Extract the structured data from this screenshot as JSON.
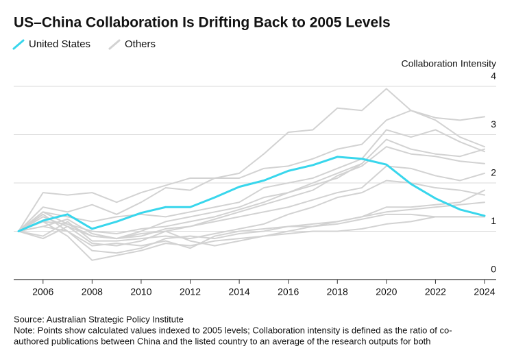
{
  "chart_data": {
    "type": "line",
    "title": "US–China Collaboration Is Drifting Back to 2005 Levels",
    "y_label": "Collaboration Intensity",
    "x": [
      2005,
      2006,
      2007,
      2008,
      2009,
      2010,
      2011,
      2012,
      2013,
      2014,
      2015,
      2016,
      2017,
      2018,
      2019,
      2020,
      2021,
      2022,
      2023,
      2024
    ],
    "xlim": [
      2005,
      2024
    ],
    "xticks": [
      2006,
      2008,
      2010,
      2012,
      2014,
      2016,
      2018,
      2020,
      2022,
      2024
    ],
    "ylim": [
      0,
      4
    ],
    "yticks": [
      0,
      1,
      2,
      3,
      4
    ],
    "grid": true,
    "series": [
      {
        "name": "United States",
        "color": "#38d6ec",
        "values": [
          1.0,
          1.22,
          1.35,
          1.05,
          1.2,
          1.38,
          1.5,
          1.5,
          1.7,
          1.92,
          2.05,
          2.25,
          2.37,
          2.54,
          2.5,
          2.38,
          1.98,
          1.68,
          1.45,
          1.32
        ]
      },
      {
        "name": "Others",
        "color": "#d2d2d2",
        "values": [
          [
            1.0,
            1.5,
            1.4,
            1.55,
            1.35,
            1.6,
            1.9,
            1.85,
            2.1,
            2.2,
            2.6,
            3.05,
            3.1,
            3.55,
            3.5,
            3.95,
            3.5,
            3.3,
            2.95,
            2.75
          ],
          [
            1.0,
            1.8,
            1.75,
            1.8,
            1.6,
            1.8,
            1.95,
            2.1,
            2.1,
            2.1,
            2.3,
            2.35,
            2.5,
            2.7,
            2.8,
            3.3,
            3.5,
            3.35,
            3.3,
            3.37
          ],
          [
            1.0,
            1.4,
            1.3,
            1.2,
            1.3,
            1.35,
            1.3,
            1.4,
            1.5,
            1.6,
            1.9,
            2.0,
            2.1,
            2.3,
            2.5,
            3.1,
            2.95,
            3.1,
            2.85,
            2.65
          ],
          [
            1.0,
            1.3,
            1.1,
            0.9,
            0.85,
            1.0,
            1.2,
            1.3,
            1.4,
            1.5,
            1.7,
            1.8,
            2.0,
            2.2,
            2.4,
            2.9,
            2.7,
            2.6,
            2.55,
            2.7
          ],
          [
            1.0,
            1.2,
            1.15,
            0.9,
            0.85,
            0.9,
            1.05,
            1.1,
            1.25,
            1.4,
            1.55,
            1.7,
            1.85,
            2.15,
            2.35,
            2.75,
            2.6,
            2.55,
            2.45,
            2.4
          ],
          [
            1.0,
            1.1,
            1.25,
            0.95,
            0.85,
            0.95,
            1.0,
            1.1,
            1.2,
            1.3,
            1.4,
            1.5,
            1.65,
            1.8,
            1.9,
            2.35,
            2.3,
            2.15,
            2.05,
            2.2
          ],
          [
            1.0,
            0.9,
            1.2,
            0.8,
            0.8,
            0.85,
            0.9,
            0.85,
            0.95,
            1.05,
            1.15,
            1.35,
            1.5,
            1.7,
            1.8,
            2.05,
            2.0,
            1.9,
            1.85,
            1.75
          ],
          [
            1.0,
            1.35,
            1.0,
            0.6,
            0.55,
            0.65,
            0.85,
            0.9,
            0.85,
            0.95,
            1.0,
            1.1,
            1.15,
            1.2,
            1.3,
            1.5,
            1.5,
            1.55,
            1.6,
            1.85
          ],
          [
            1.0,
            1.2,
            0.9,
            0.4,
            0.5,
            0.6,
            0.75,
            0.7,
            0.8,
            0.85,
            0.9,
            0.95,
            1.0,
            1.0,
            1.05,
            1.15,
            1.2,
            1.3,
            1.3,
            1.3
          ],
          [
            1.0,
            0.85,
            1.1,
            0.75,
            0.7,
            0.8,
            1.0,
            0.8,
            0.7,
            0.8,
            0.9,
            1.0,
            1.1,
            1.2,
            1.3,
            1.4,
            1.45,
            1.5,
            1.55,
            1.6
          ],
          [
            1.0,
            1.4,
            1.15,
            1.0,
            0.95,
            1.05,
            1.1,
            1.2,
            1.3,
            1.45,
            1.6,
            1.8,
            1.95,
            2.1,
            2.4,
            null,
            null,
            null,
            null,
            null
          ],
          [
            1.0,
            1.1,
            1.0,
            0.7,
            0.75,
            0.7,
            0.8,
            0.65,
            0.9,
            1.0,
            1.05,
            1.1,
            1.1,
            1.15,
            1.25,
            1.35,
            1.35,
            1.3,
            1.3,
            1.3
          ]
        ]
      }
    ],
    "source": "Source: Australian Strategic Policy Institute",
    "note": [
      "Note: Points show calculated values indexed to 2005 levels; Collaboration intensity is defined as the ratio of co-",
      "authored publications between China and the listed country to an average of the research outputs for both"
    ]
  }
}
